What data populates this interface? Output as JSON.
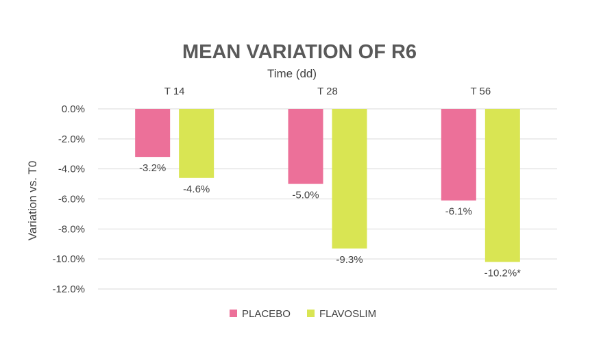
{
  "chart_data": {
    "type": "bar",
    "title": "MEAN VARIATION OF R6",
    "xlabel": "Time (dd)",
    "ylabel": "Variation vs. T0",
    "categories": [
      "T 14",
      "T 28",
      "T 56"
    ],
    "x_axis_position": "top",
    "ylim": [
      -12,
      0
    ],
    "yticks": [
      0,
      -2,
      -4,
      -6,
      -8,
      -10,
      -12
    ],
    "ytick_labels": [
      "0.0%",
      "-2.0%",
      "-4.0%",
      "-6.0%",
      "-8.0%",
      "-10.0%",
      "-12.0%"
    ],
    "value_unit": "%",
    "grid": true,
    "legend_position": "bottom",
    "series": [
      {
        "name": "PLACEBO",
        "color": "#ec7099",
        "values": [
          -3.2,
          -5.0,
          -6.1
        ],
        "data_labels": [
          "-3.2%",
          "-5.0%",
          "-6.1%"
        ]
      },
      {
        "name": "FLAVOSLIM",
        "color": "#d9e553",
        "values": [
          -4.6,
          -9.3,
          -10.2
        ],
        "data_labels": [
          "-4.6%",
          "-9.3%",
          "-10.2%*"
        ]
      }
    ]
  }
}
